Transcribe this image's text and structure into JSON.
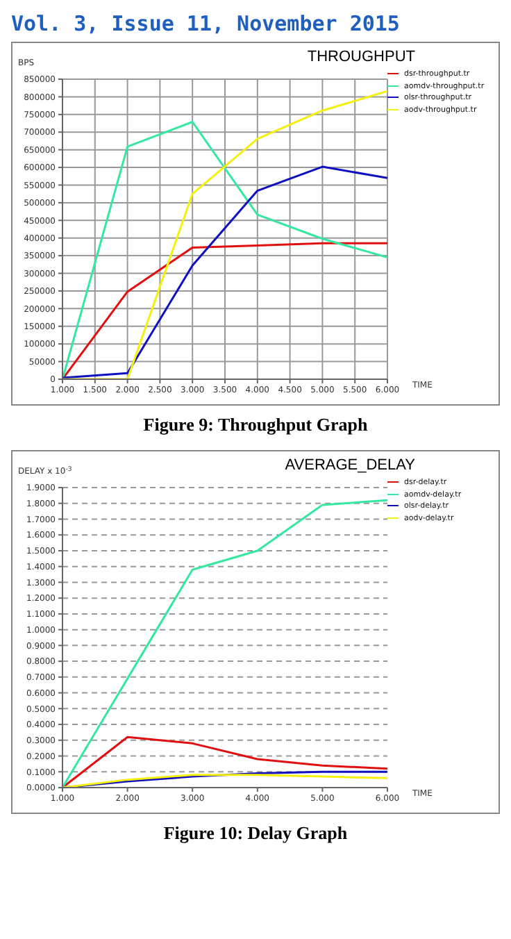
{
  "chart_data": [
    {
      "type": "line",
      "title": "THROUGHPUT",
      "xlabel": "TIME",
      "ylabel": "BPS",
      "annotations": [
        "Vol. 3, Issue 11, November 2015",
        "Figure 9: Throughput Graph"
      ],
      "x": [
        1,
        2,
        3,
        4,
        5,
        6
      ],
      "series": [
        {
          "name": "dsr-throughput.tr",
          "color": "#e01010",
          "values": [
            0,
            248000,
            373000,
            379000,
            385000,
            385000
          ]
        },
        {
          "name": "aomdv-throughput.tr",
          "color": "#33e8a0",
          "values": [
            0,
            659000,
            729000,
            466000,
            398000,
            345000
          ]
        },
        {
          "name": "olsr-throughput.tr",
          "color": "#1010c0",
          "values": [
            4000,
            17000,
            322000,
            534000,
            602000,
            570000
          ]
        },
        {
          "name": "aodv-throughput.tr",
          "color": "#f5f010",
          "values": [
            0,
            0,
            525000,
            681000,
            761000,
            816000
          ]
        }
      ],
      "xlim": [
        1,
        6
      ],
      "xticks": [
        {
          "value": 1,
          "label": "1.000"
        },
        {
          "value": 1.5,
          "label": "1.500"
        },
        {
          "value": 2,
          "label": "2.000"
        },
        {
          "value": 2.5,
          "label": "2.500"
        },
        {
          "value": 3,
          "label": "3.000"
        },
        {
          "value": 3.5,
          "label": "3.500"
        },
        {
          "value": 4,
          "label": "4.000"
        },
        {
          "value": 4.5,
          "label": "4.500"
        },
        {
          "value": 5,
          "label": "5.000"
        },
        {
          "value": 5.5,
          "label": "5.500"
        },
        {
          "value": 6,
          "label": "6.000"
        }
      ],
      "ylim": [
        0,
        850000
      ],
      "yticks": [
        0,
        50000,
        100000,
        150000,
        200000,
        250000,
        300000,
        350000,
        400000,
        450000,
        500000,
        550000,
        600000,
        650000,
        700000,
        750000,
        800000,
        850000
      ],
      "grid": true,
      "legend": "top right",
      "marker": "none",
      "line_style": "solid"
    },
    {
      "type": "line",
      "title": "AVERAGE_DELAY",
      "xlabel": "TIME",
      "ylabel": "DELAY x 10$^{-3}$",
      "annotations": [
        "Figure 10: Delay Graph"
      ],
      "x": [
        1,
        2,
        3,
        4,
        5,
        6
      ],
      "series": [
        {
          "name": "dsr-delay.tr",
          "color": "#e01010",
          "values": [
            0,
            0.32,
            0.28,
            0.18,
            0.14,
            0.12
          ]
        },
        {
          "name": "aomdv-delay.tr",
          "color": "#33e8a0",
          "values": [
            0,
            0.69,
            1.38,
            1.5,
            1.79,
            1.82
          ]
        },
        {
          "name": "olsr-delay.tr",
          "color": "#1010c0",
          "values": [
            0,
            0.04,
            0.07,
            0.09,
            0.1,
            0.1
          ]
        },
        {
          "name": "aodv-delay.tr",
          "color": "#f5f010",
          "values": [
            0,
            0.05,
            0.08,
            0.08,
            0.07,
            0.06
          ]
        }
      ],
      "xlim": [
        1,
        6
      ],
      "xticks": [
        {
          "value": 1,
          "label": "1.000"
        },
        {
          "value": 2,
          "label": "2.000"
        },
        {
          "value": 3,
          "label": "3.000"
        },
        {
          "value": 4,
          "label": "4.000"
        },
        {
          "value": 5,
          "label": "5.000"
        },
        {
          "value": 6,
          "label": "6.000"
        }
      ],
      "ylim": [
        0,
        1.9
      ],
      "yticks": [
        {
          "value": 0,
          "label": "0.0000"
        },
        {
          "value": 0.1,
          "label": "0.1000"
        },
        {
          "value": 0.2,
          "label": "0.2000"
        },
        {
          "value": 0.3,
          "label": "0.3000"
        },
        {
          "value": 0.4,
          "label": "0.4000"
        },
        {
          "value": 0.5,
          "label": "0.5000"
        },
        {
          "value": 0.6,
          "label": "0.6000"
        },
        {
          "value": 0.7,
          "label": "0.7000"
        },
        {
          "value": 0.8,
          "label": "0.8000"
        },
        {
          "value": 0.9,
          "label": "0.9000"
        },
        {
          "value": 1,
          "label": "1.0000"
        },
        {
          "value": 1.1,
          "label": "1.1000"
        },
        {
          "value": 1.2,
          "label": "1.2000"
        },
        {
          "value": 1.3,
          "label": "1.3000"
        },
        {
          "value": 1.4,
          "label": "1.4000"
        },
        {
          "value": 1.5,
          "label": "1.5000"
        },
        {
          "value": 1.6,
          "label": "1.6000"
        },
        {
          "value": 1.7,
          "label": "1.7000"
        },
        {
          "value": 1.8,
          "label": "1.8000"
        },
        {
          "value": 1.9,
          "label": "1.9000"
        }
      ],
      "grid": "y",
      "legend": "top right",
      "marker": "none",
      "line_style": "solid"
    }
  ]
}
